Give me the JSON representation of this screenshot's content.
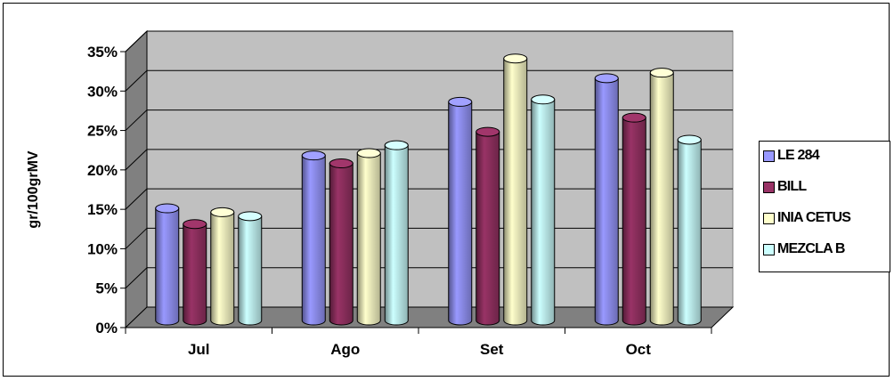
{
  "chart_data": {
    "type": "bar",
    "title": "",
    "xlabel": "",
    "ylabel": "gr/100grMV",
    "categories": [
      "Jul",
      "Ago",
      "Set",
      "Oct"
    ],
    "series": [
      {
        "name": "LE 284",
        "color": "#9999ff",
        "values": [
          14,
          20.7,
          27.5,
          30.5
        ]
      },
      {
        "name": "BILL",
        "color": "#993366",
        "values": [
          12,
          19.7,
          23.7,
          25.5
        ]
      },
      {
        "name": "INIA CETUS",
        "color": "#ffffcc",
        "values": [
          13.5,
          21,
          33,
          31.2
        ]
      },
      {
        "name": "MEZCLA B",
        "color": "#ccffff",
        "values": [
          13,
          22,
          27.8,
          22.7
        ]
      }
    ],
    "ylim": [
      0,
      35
    ],
    "yticks": [
      "0%",
      "5%",
      "10%",
      "15%",
      "20%",
      "25%",
      "30%",
      "35%"
    ],
    "grid": true,
    "three_d": true,
    "wall_color": "#c0c0c0",
    "floor_color": "#808080",
    "legend_position": "right"
  }
}
